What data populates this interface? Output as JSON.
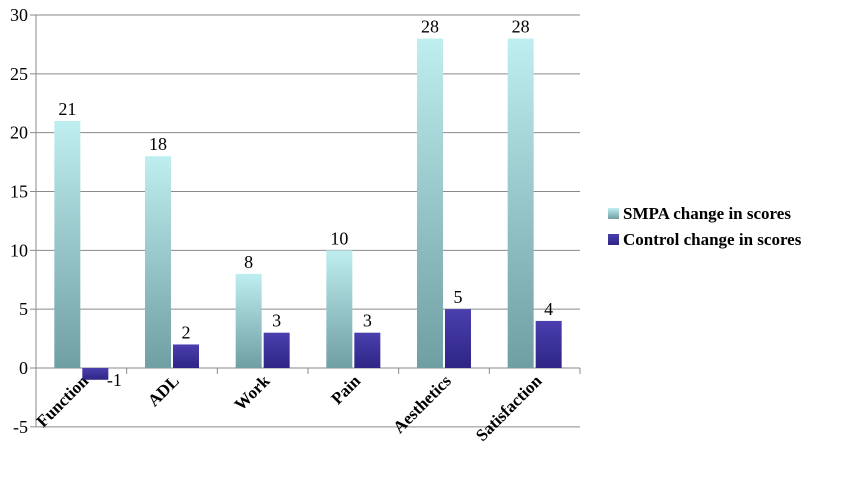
{
  "chart_data": {
    "type": "bar",
    "categories": [
      "Function",
      "ADL",
      "Work",
      "Pain",
      "Aesthetics",
      "Satisfaction"
    ],
    "series": [
      {
        "name": "SMPA change in scores",
        "values": [
          21,
          18,
          8,
          10,
          28,
          28
        ],
        "color_top": "#bfeef0",
        "color_bottom": "#6f9ea3"
      },
      {
        "name": "Control change in scores",
        "values": [
          -1,
          2,
          3,
          3,
          5,
          4
        ],
        "color_top": "#4a3fae",
        "color_bottom": "#2e2585"
      }
    ],
    "ylim": [
      -5,
      30
    ],
    "yticks": [
      "-5",
      "0",
      "5",
      "10",
      "15",
      "20",
      "25",
      "30"
    ],
    "grid": true,
    "legend": "right",
    "xlabel": "",
    "ylabel": "",
    "title": ""
  }
}
